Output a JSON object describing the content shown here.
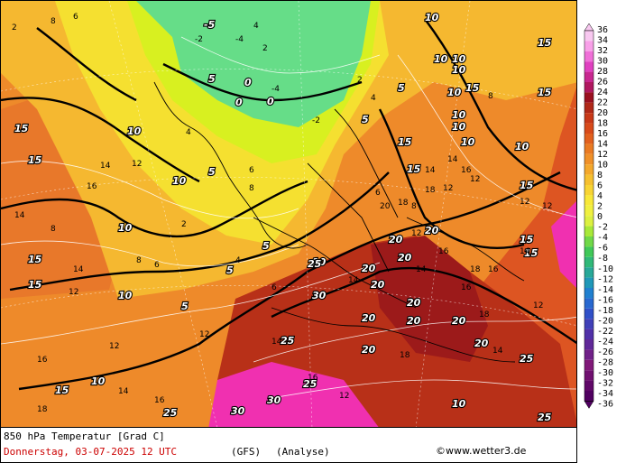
{
  "title_line": "850 hPa Temperatur [Grad C]",
  "date_line": "Donnerstag, 03-07-2025  12 UTC",
  "model": "(GFS)",
  "analysis": "(Analyse)",
  "credit": "©www.wetter3.de",
  "colorbar_labels": [
    "36",
    "34",
    "32",
    "30",
    "28",
    "26",
    "24",
    "22",
    "20",
    "18",
    "16",
    "14",
    "12",
    "10",
    "8",
    "6",
    "4",
    "2",
    "0",
    "-2",
    "-4",
    "-6",
    "-8",
    "-10",
    "-12",
    "-14",
    "-16",
    "-18",
    "-20",
    "-22",
    "-24",
    "-26",
    "-28",
    "-30",
    "-32",
    "-34",
    "-36"
  ],
  "colors": {
    "ice": "#66dd88",
    "cold": "#d8f020",
    "cool": "#f5e030",
    "mild": "#f5b830",
    "warm": "#ee8a2a",
    "hot": "#dd5522",
    "veryhot": "#b83018",
    "extreme": "#9c1a1a",
    "pink": "#f030b0"
  },
  "contour_labels_bold": [
    "10",
    "10",
    "10",
    "10",
    "15",
    "15",
    "15",
    "10",
    "10",
    "10",
    "10",
    "10",
    "10",
    "15",
    "15",
    "15",
    "10",
    "15",
    "20",
    "20",
    "20",
    "20",
    "20",
    "20",
    "20",
    "20",
    "25",
    "25",
    "25",
    "30",
    "30",
    "20",
    "20",
    "25",
    "15",
    "15",
    "10",
    "5",
    "5",
    "5",
    "5",
    "0",
    "0",
    "0",
    "-5",
    "5",
    "5",
    "10",
    "10",
    "15",
    "15",
    "25",
    "15",
    "25",
    "30",
    "20",
    "10",
    "15",
    "10",
    "5"
  ],
  "contour_labels_small": [
    "2",
    "8",
    "6",
    "14",
    "12",
    "16",
    "8",
    "2",
    "4",
    "6",
    "-2",
    "-4",
    "-2",
    "-4",
    "2",
    "4",
    "6",
    "8",
    "12",
    "14",
    "16",
    "18",
    "14",
    "12",
    "16",
    "14",
    "18",
    "12",
    "12",
    "14",
    "12",
    "16",
    "18",
    "14",
    "12",
    "14",
    "16",
    "4",
    "6",
    "8",
    "12",
    "14",
    "16",
    "18",
    "14",
    "12",
    "16",
    "18",
    "20",
    "18",
    "8",
    "8",
    "6",
    "12",
    "14",
    "16",
    "14",
    "12",
    "4",
    "2"
  ]
}
